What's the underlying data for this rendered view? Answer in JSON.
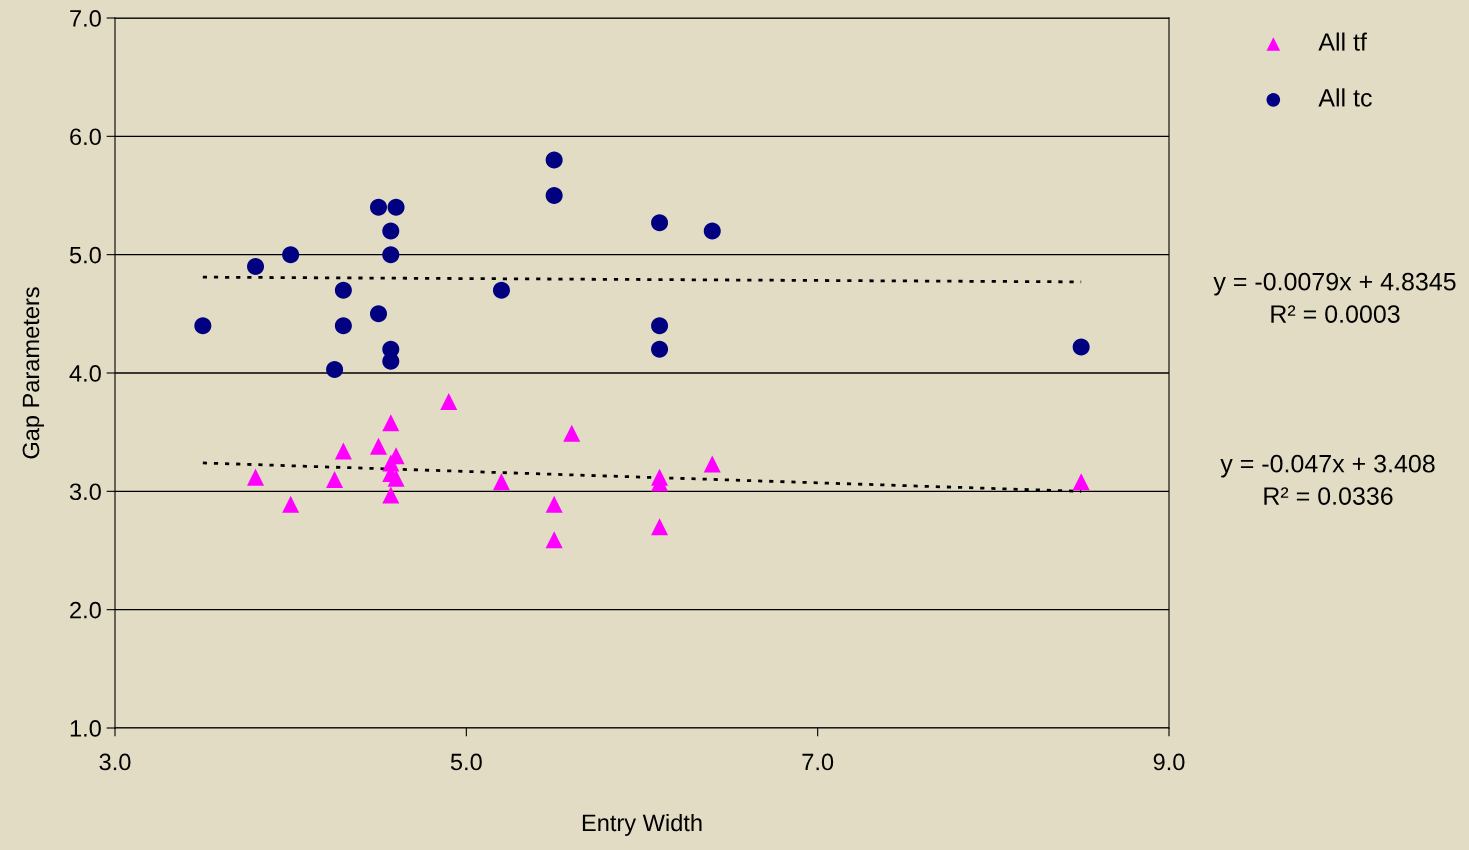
{
  "chart_data": {
    "type": "scatter",
    "xlabel": "Entry Width",
    "ylabel": "Gap Parameters",
    "xlim": [
      3.0,
      9.0
    ],
    "xticks": [
      {
        "value": 3,
        "label": "3.0"
      },
      {
        "value": 5,
        "label": "5.0"
      },
      {
        "value": 7,
        "label": "7.0"
      },
      {
        "value": 9,
        "label": "9.0"
      }
    ],
    "ylim": [
      1.0,
      7.0
    ],
    "yticks": [
      {
        "value": 1,
        "label": "1.0"
      },
      {
        "value": 2,
        "label": "2.0"
      },
      {
        "value": 3,
        "label": "3.0"
      },
      {
        "value": 4,
        "label": "4.0"
      },
      {
        "value": 5,
        "label": "5.0"
      },
      {
        "value": 6,
        "label": "6.0"
      },
      {
        "value": 7,
        "label": "7.0"
      }
    ],
    "grid": "y",
    "legend": "top right",
    "series": [
      {
        "name": "All tf",
        "color": "#ff00ff",
        "marker": "triangle",
        "x": [
          3.8,
          4.0,
          4.3,
          4.25,
          4.5,
          4.57,
          4.6,
          4.57,
          4.57,
          4.6,
          4.57,
          4.9,
          5.2,
          5.5,
          5.5,
          5.6,
          6.1,
          6.1,
          6.1,
          6.4,
          8.5
        ],
        "values": [
          3.12,
          2.89,
          3.34,
          3.1,
          3.38,
          3.58,
          3.3,
          3.24,
          3.15,
          3.11,
          2.97,
          3.76,
          3.08,
          2.89,
          2.59,
          3.49,
          3.12,
          3.07,
          2.7,
          3.23,
          3.08
        ]
      },
      {
        "name": "All tc",
        "color": "#000080",
        "marker": "circle",
        "x": [
          3.5,
          3.8,
          4.0,
          4.3,
          4.3,
          4.25,
          4.5,
          4.6,
          4.57,
          4.57,
          4.5,
          4.57,
          4.57,
          5.2,
          5.5,
          5.5,
          6.1,
          6.4,
          6.1,
          6.1,
          8.5
        ],
        "values": [
          4.4,
          4.9,
          5.0,
          4.7,
          4.4,
          4.03,
          5.4,
          5.4,
          5.2,
          5.0,
          4.5,
          4.2,
          4.1,
          4.7,
          5.8,
          5.5,
          5.27,
          5.2,
          4.4,
          4.2,
          4.22
        ]
      },
      {
        "type": "line",
        "color": "#000000",
        "line_style": "dotted",
        "marker": "none",
        "x": [
          3.5,
          8.5
        ],
        "values": [
          4.81,
          4.77
        ]
      },
      {
        "type": "line",
        "color": "#000000",
        "line_style": "dotted",
        "marker": "none",
        "x": [
          3.5,
          8.5
        ],
        "values": [
          3.24,
          3.0
        ]
      }
    ],
    "annotations": [
      "y = -0.0079x + 4.8345\nR² = 0.0003",
      "y = -0.047x + 3.408\nR² = 0.0336"
    ]
  }
}
